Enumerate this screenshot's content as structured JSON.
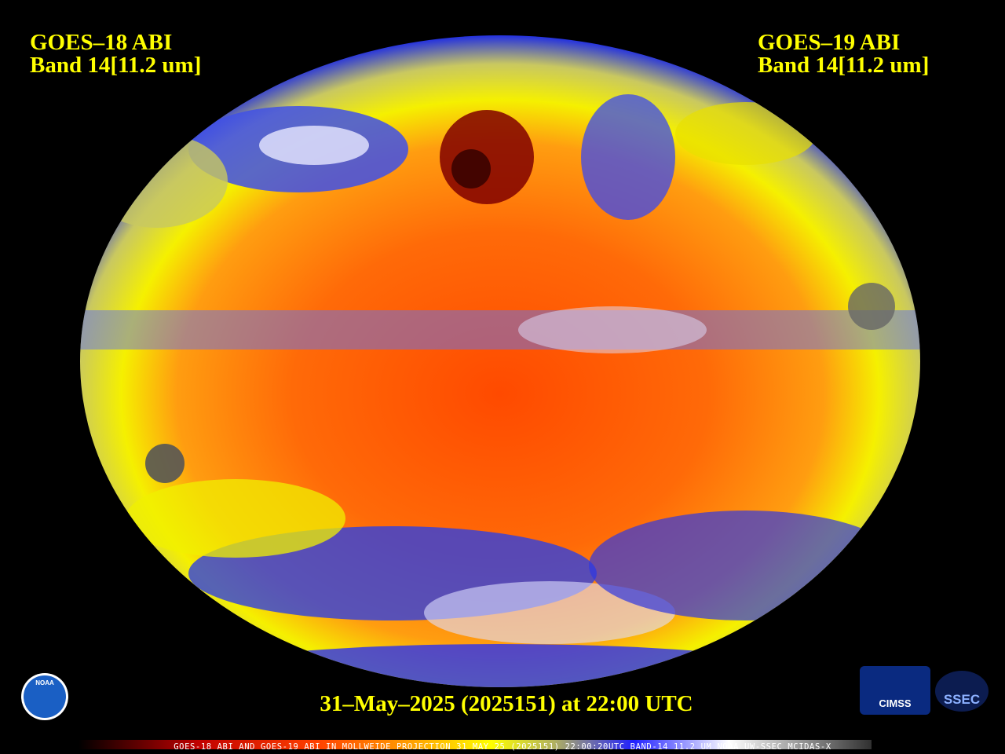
{
  "header": {
    "left_title": "GOES–18 ABI",
    "left_band": "Band 14[11.2 um]",
    "right_title": "GOES–19 ABI",
    "right_band": "Band 14[11.2 um]"
  },
  "timestamp": "31–May–2025 (2025151) at 22:00 UTC",
  "footer_caption": "GOES-18 ABI AND GOES-19 ABI IN MOLLWEIDE PROJECTION 31 MAY 25 (2025151) 22:00:20UTC BAND-14 11.2 UM NOAA UW-SSEC MCIDAS-X",
  "logos": {
    "noaa": "NOAA",
    "cimss": "CIMSS",
    "ssec": "SSEC"
  }
}
